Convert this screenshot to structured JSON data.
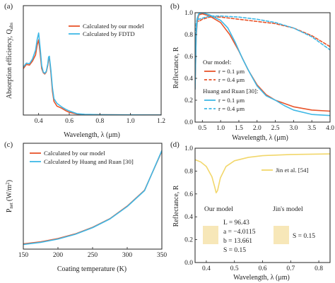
{
  "colors": {
    "orange": "#e8542a",
    "blue": "#3fb8e6",
    "yellow": "#f2d76b",
    "swatch": "#f7e7b8"
  },
  "chart_data": [
    {
      "id": "a",
      "panel_label": "(a)",
      "type": "line",
      "xlabel": "Wavelength, λ (μm)",
      "ylabel_main": "Absorption efficiency, Q",
      "ylabel_sub": "abs",
      "xlim": [
        0.3,
        1.2
      ],
      "ylim": [
        0,
        1.6
      ],
      "xticks": [
        "0.4",
        "0.6",
        "0.8",
        "1.0",
        "1.2"
      ],
      "xtick_values": [
        0.4,
        0.6,
        0.8,
        1.0,
        1.2
      ],
      "legend_position": "top-right",
      "series": [
        {
          "name": "Calculated by our model",
          "color": "#e8542a",
          "points": [
            [
              0.3,
              0.68
            ],
            [
              0.32,
              0.74
            ],
            [
              0.34,
              0.73
            ],
            [
              0.36,
              0.79
            ],
            [
              0.38,
              0.88
            ],
            [
              0.39,
              1.02
            ],
            [
              0.4,
              1.1
            ],
            [
              0.41,
              0.9
            ],
            [
              0.42,
              0.68
            ],
            [
              0.43,
              0.62
            ],
            [
              0.44,
              0.6
            ],
            [
              0.45,
              0.63
            ],
            [
              0.46,
              0.73
            ],
            [
              0.465,
              0.82
            ],
            [
              0.47,
              0.83
            ],
            [
              0.48,
              0.62
            ],
            [
              0.49,
              0.35
            ],
            [
              0.5,
              0.2
            ],
            [
              0.52,
              0.13
            ],
            [
              0.55,
              0.1
            ],
            [
              0.58,
              0.06
            ],
            [
              0.6,
              0.04
            ],
            [
              0.65,
              0.015
            ],
            [
              0.7,
              0.008
            ],
            [
              0.8,
              0.004
            ],
            [
              1.0,
              0.002
            ],
            [
              1.2,
              0.001
            ]
          ]
        },
        {
          "name": "Calculated by FDTD",
          "color": "#3fb8e6",
          "points": [
            [
              0.3,
              0.7
            ],
            [
              0.32,
              0.76
            ],
            [
              0.34,
              0.75
            ],
            [
              0.36,
              0.82
            ],
            [
              0.38,
              0.95
            ],
            [
              0.39,
              1.1
            ],
            [
              0.4,
              1.2
            ],
            [
              0.41,
              0.98
            ],
            [
              0.42,
              0.72
            ],
            [
              0.43,
              0.63
            ],
            [
              0.44,
              0.61
            ],
            [
              0.45,
              0.64
            ],
            [
              0.46,
              0.75
            ],
            [
              0.465,
              0.85
            ],
            [
              0.47,
              0.86
            ],
            [
              0.48,
              0.66
            ],
            [
              0.49,
              0.4
            ],
            [
              0.5,
              0.24
            ],
            [
              0.52,
              0.17
            ],
            [
              0.55,
              0.12
            ],
            [
              0.58,
              0.08
            ],
            [
              0.6,
              0.06
            ],
            [
              0.65,
              0.02
            ],
            [
              0.7,
              0.01
            ],
            [
              0.8,
              0.005
            ],
            [
              1.0,
              0.002
            ],
            [
              1.2,
              0.001
            ]
          ]
        }
      ]
    },
    {
      "id": "b",
      "panel_label": "(b)",
      "type": "line",
      "xlabel": "Wavelength, λ (μm)",
      "ylabel": "Reflectance, R",
      "xlim": [
        0.3,
        4.0
      ],
      "ylim": [
        0,
        1.0
      ],
      "xticks": [
        "0.5",
        "1.0",
        "1.5",
        "2.0",
        "2.5",
        "3.0",
        "3.5",
        "4.0"
      ],
      "xtick_values": [
        0.5,
        1.0,
        1.5,
        2.0,
        2.5,
        3.0,
        3.5,
        4.0
      ],
      "yticks": [
        "0.0",
        "0.2",
        "0.4",
        "0.6",
        "0.8",
        "1.0"
      ],
      "ytick_values": [
        0,
        0.2,
        0.4,
        0.6,
        0.8,
        1.0
      ],
      "legend_position": "center-right",
      "legend_groups": [
        {
          "title": "Our model:",
          "entries": [
            {
              "label": "r = 0.1 μm",
              "series_index": 0
            },
            {
              "label": "r = 0.4 μm",
              "series_index": 1
            }
          ]
        },
        {
          "title": "Huang and Ruan [30]:",
          "entries": [
            {
              "label": "r = 0.1 μm",
              "series_index": 2
            },
            {
              "label": "r = 0.4 μm",
              "series_index": 3
            }
          ]
        }
      ],
      "series": [
        {
          "color": "#e8542a",
          "dashed": false,
          "points": [
            [
              0.3,
              0.3
            ],
            [
              0.33,
              0.78
            ],
            [
              0.36,
              0.92
            ],
            [
              0.4,
              0.98
            ],
            [
              0.5,
              0.99
            ],
            [
              0.7,
              0.97
            ],
            [
              1.0,
              0.91
            ],
            [
              1.25,
              0.8
            ],
            [
              1.5,
              0.65
            ],
            [
              1.75,
              0.48
            ],
            [
              2.0,
              0.34
            ],
            [
              2.25,
              0.25
            ],
            [
              2.5,
              0.2
            ],
            [
              2.75,
              0.17
            ],
            [
              3.0,
              0.14
            ],
            [
              3.5,
              0.11
            ],
            [
              4.0,
              0.1
            ]
          ]
        },
        {
          "color": "#e8542a",
          "dashed": true,
          "points": [
            [
              0.3,
              0.5
            ],
            [
              0.33,
              0.88
            ],
            [
              0.36,
              0.93
            ],
            [
              0.4,
              0.92
            ],
            [
              0.5,
              0.94
            ],
            [
              0.7,
              0.96
            ],
            [
              1.0,
              0.96
            ],
            [
              1.5,
              0.94
            ],
            [
              2.0,
              0.92
            ],
            [
              2.5,
              0.9
            ],
            [
              3.0,
              0.86
            ],
            [
              3.5,
              0.79
            ],
            [
              4.0,
              0.69
            ]
          ]
        },
        {
          "color": "#3fb8e6",
          "dashed": false,
          "points": [
            [
              0.3,
              0.3
            ],
            [
              0.33,
              0.8
            ],
            [
              0.36,
              0.95
            ],
            [
              0.4,
              0.99
            ],
            [
              0.5,
              1.0
            ],
            [
              0.7,
              0.98
            ],
            [
              1.0,
              0.93
            ],
            [
              1.2,
              0.86
            ],
            [
              1.4,
              0.73
            ],
            [
              1.6,
              0.58
            ],
            [
              1.8,
              0.45
            ],
            [
              2.0,
              0.33
            ],
            [
              2.25,
              0.24
            ],
            [
              2.5,
              0.2
            ],
            [
              2.75,
              0.15
            ],
            [
              3.0,
              0.11
            ],
            [
              3.5,
              0.07
            ],
            [
              4.0,
              0.06
            ]
          ]
        },
        {
          "color": "#3fb8e6",
          "dashed": true,
          "points": [
            [
              0.3,
              0.5
            ],
            [
              0.33,
              0.9
            ],
            [
              0.36,
              0.95
            ],
            [
              0.4,
              0.94
            ],
            [
              0.5,
              0.95
            ],
            [
              0.7,
              0.97
            ],
            [
              1.0,
              0.97
            ],
            [
              1.5,
              0.96
            ],
            [
              2.0,
              0.94
            ],
            [
              2.5,
              0.91
            ],
            [
              3.0,
              0.86
            ],
            [
              3.5,
              0.78
            ],
            [
              4.0,
              0.66
            ]
          ]
        }
      ]
    },
    {
      "id": "c",
      "panel_label": "(c)",
      "type": "line",
      "xlabel": "Coating temperature (K)",
      "ylabel_main": "P",
      "ylabel_sub": "net",
      "ylabel_unit": "(W/m",
      "ylabel_sup": "2",
      "ylabel_end": ")",
      "xlim": [
        150,
        350
      ],
      "ylim": [
        -220,
        580
      ],
      "xticks": [
        "150",
        "200",
        "250",
        "300",
        "350"
      ],
      "xtick_values": [
        150,
        200,
        250,
        300,
        350
      ],
      "legend_position": "top-left",
      "series": [
        {
          "name": "Calculated by our model",
          "color": "#e8542a",
          "points": [
            [
              150,
              -180
            ],
            [
              175,
              -165
            ],
            [
              200,
              -140
            ],
            [
              225,
              -105
            ],
            [
              250,
              -55
            ],
            [
              275,
              10
            ],
            [
              300,
              105
            ],
            [
              325,
              225
            ],
            [
              350,
              520
            ]
          ]
        },
        {
          "name": "Calculated by Huang and Ruan [30]",
          "color": "#3fb8e6",
          "points": [
            [
              150,
              -185
            ],
            [
              175,
              -169
            ],
            [
              200,
              -144
            ],
            [
              225,
              -108
            ],
            [
              250,
              -58
            ],
            [
              275,
              8
            ],
            [
              300,
              102
            ],
            [
              325,
              222
            ],
            [
              350,
              525
            ]
          ]
        }
      ]
    },
    {
      "id": "d",
      "panel_label": "(d)",
      "type": "line",
      "xlabel": "Wavelength, λ (μm)",
      "ylabel": "Reflectance, R",
      "xlim": [
        0.36,
        0.84
      ],
      "ylim": [
        0,
        1.0
      ],
      "xticks": [
        "0.4",
        "0.5",
        "0.6",
        "0.7",
        "0.8"
      ],
      "xtick_values": [
        0.4,
        0.5,
        0.6,
        0.7,
        0.8
      ],
      "yticks": [
        "0.0",
        "0.2",
        "0.4",
        "0.6",
        "0.8",
        "1.0"
      ],
      "ytick_values": [
        0,
        0.2,
        0.4,
        0.6,
        0.8,
        1.0
      ],
      "legend_position": "top-right",
      "series": [
        {
          "name": "Jin et al. [54]",
          "color": "#f2d76b",
          "points": [
            [
              0.36,
              0.9
            ],
            [
              0.38,
              0.88
            ],
            [
              0.4,
              0.84
            ],
            [
              0.42,
              0.75
            ],
            [
              0.43,
              0.66
            ],
            [
              0.435,
              0.61
            ],
            [
              0.44,
              0.63
            ],
            [
              0.45,
              0.74
            ],
            [
              0.47,
              0.84
            ],
            [
              0.5,
              0.89
            ],
            [
              0.55,
              0.92
            ],
            [
              0.6,
              0.935
            ],
            [
              0.7,
              0.945
            ],
            [
              0.84,
              0.95
            ]
          ]
        }
      ],
      "annotations": {
        "left_title": "Our model",
        "right_title": "Jin's model",
        "params": [
          "L = 96.43",
          "a = −4.0115",
          "b = 13.661",
          "S = 0.15"
        ],
        "right_param": "S = 0.15"
      }
    }
  ]
}
